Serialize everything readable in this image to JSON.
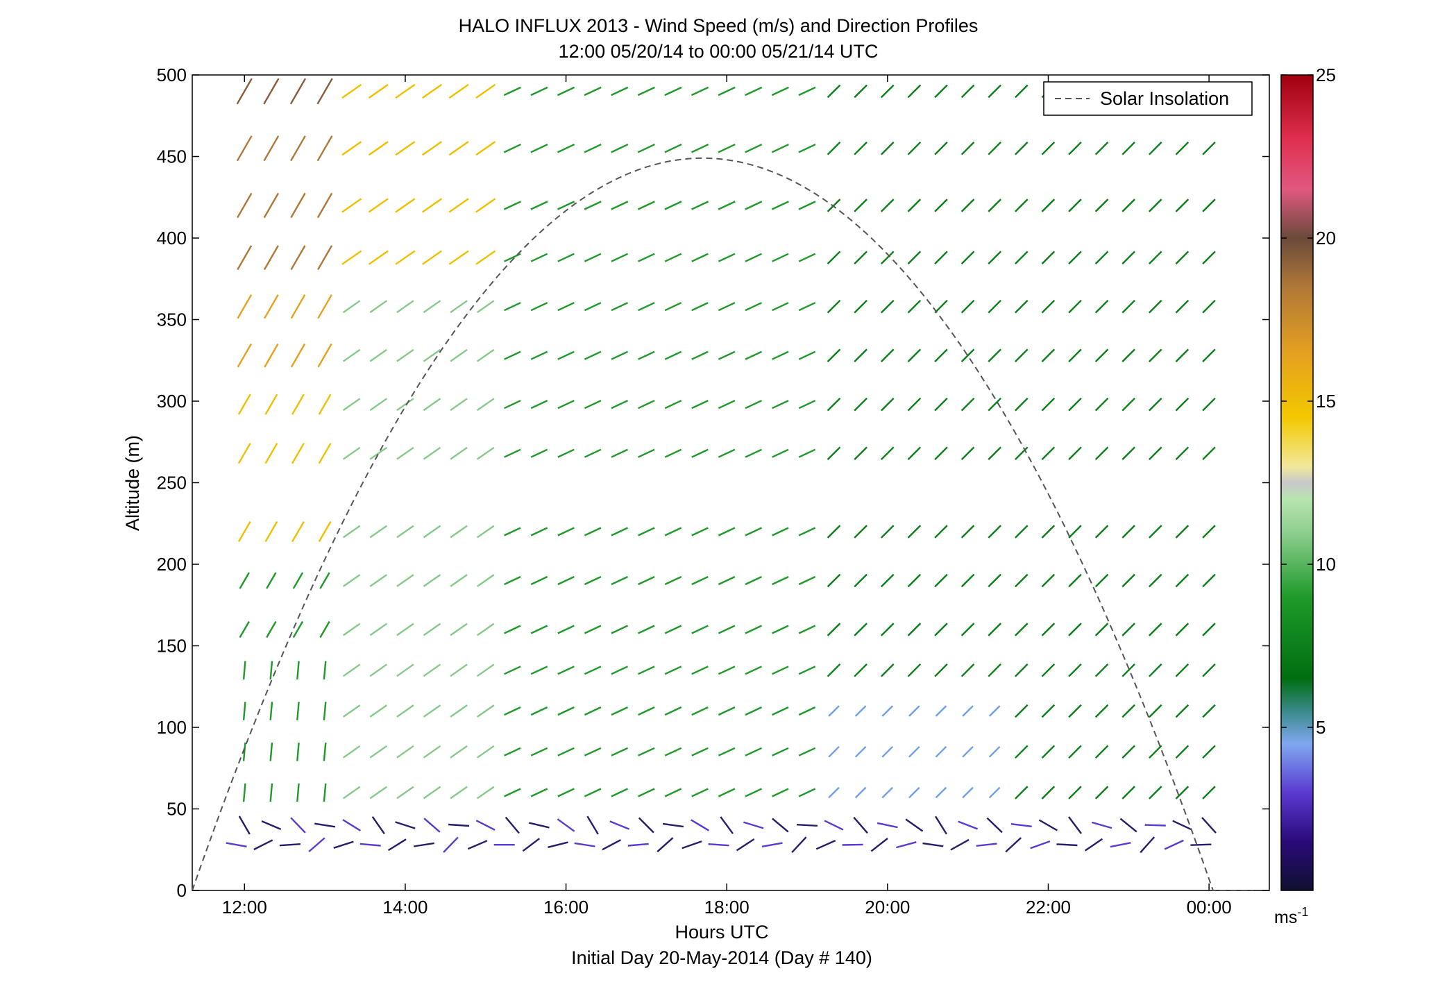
{
  "chart_data": {
    "type": "wind-barb-profile",
    "title": "HALO INFLUX 2013 - Wind Speed (m/s) and Direction Profiles",
    "subtitle": "12:00 05/20/14 to 00:00 05/21/14  UTC",
    "xlabel": "Hours UTC",
    "xlabel2": "Initial Day 20-May-2014 (Day # 140)",
    "ylabel": "Altitude (m)",
    "xlim": [
      11.35,
      24.75
    ],
    "ylim": [
      0,
      500
    ],
    "x_ticks": [
      12,
      14,
      16,
      18,
      20,
      22,
      24
    ],
    "x_tick_labels": [
      "12:00",
      "14:00",
      "16:00",
      "18:00",
      "20:00",
      "22:00",
      "00:00"
    ],
    "y_ticks": [
      0,
      50,
      100,
      150,
      200,
      250,
      300,
      350,
      400,
      450,
      500
    ],
    "y_tick_labels": [
      "0",
      "50",
      "100",
      "150",
      "200",
      "250",
      "300",
      "350",
      "400",
      "450",
      "500"
    ],
    "legend": {
      "entries": [
        "Solar Insolation"
      ],
      "placement": "top-right"
    },
    "colorbar": {
      "range": [
        0,
        25
      ],
      "ticks": [
        5,
        10,
        15,
        20,
        25
      ],
      "tick_labels": [
        "5",
        "10",
        "15",
        "20",
        "25"
      ],
      "unit": "ms",
      "unit_exp": "-1"
    },
    "solar_insolation": {
      "style": "dashed",
      "color": "#555555",
      "points": [
        [
          11.35,
          52
        ],
        [
          12.5,
          205
        ],
        [
          13.5,
          305
        ],
        [
          14.5,
          378
        ],
        [
          15.5,
          420
        ],
        [
          16.5,
          442
        ],
        [
          17.7,
          449
        ],
        [
          18.5,
          440
        ],
        [
          19.5,
          405
        ],
        [
          20.5,
          345
        ],
        [
          21.5,
          260
        ],
        [
          22.5,
          158
        ],
        [
          23.5,
          70
        ],
        [
          24.6,
          0
        ]
      ]
    },
    "wind_vectors": {
      "note_units": "speed in m/s, direction in degrees toward which the line points",
      "altitudes_upper": [
        490,
        455,
        420,
        388,
        358,
        328,
        298,
        268,
        220,
        190,
        160,
        135,
        110,
        85,
        60
      ],
      "time_step_hours": 0.3333
    },
    "colors": {
      "axis": "#000000",
      "background": "#ffffff",
      "low_wind_purple": "#3a1a8a",
      "light_blue": "#6f9ee8",
      "green": "#1f9a2a",
      "light_green": "#86c98a",
      "yellow": "#f0c000",
      "orange": "#e6a020",
      "brown": "#8a5a3a",
      "red": "#b0101a"
    }
  }
}
